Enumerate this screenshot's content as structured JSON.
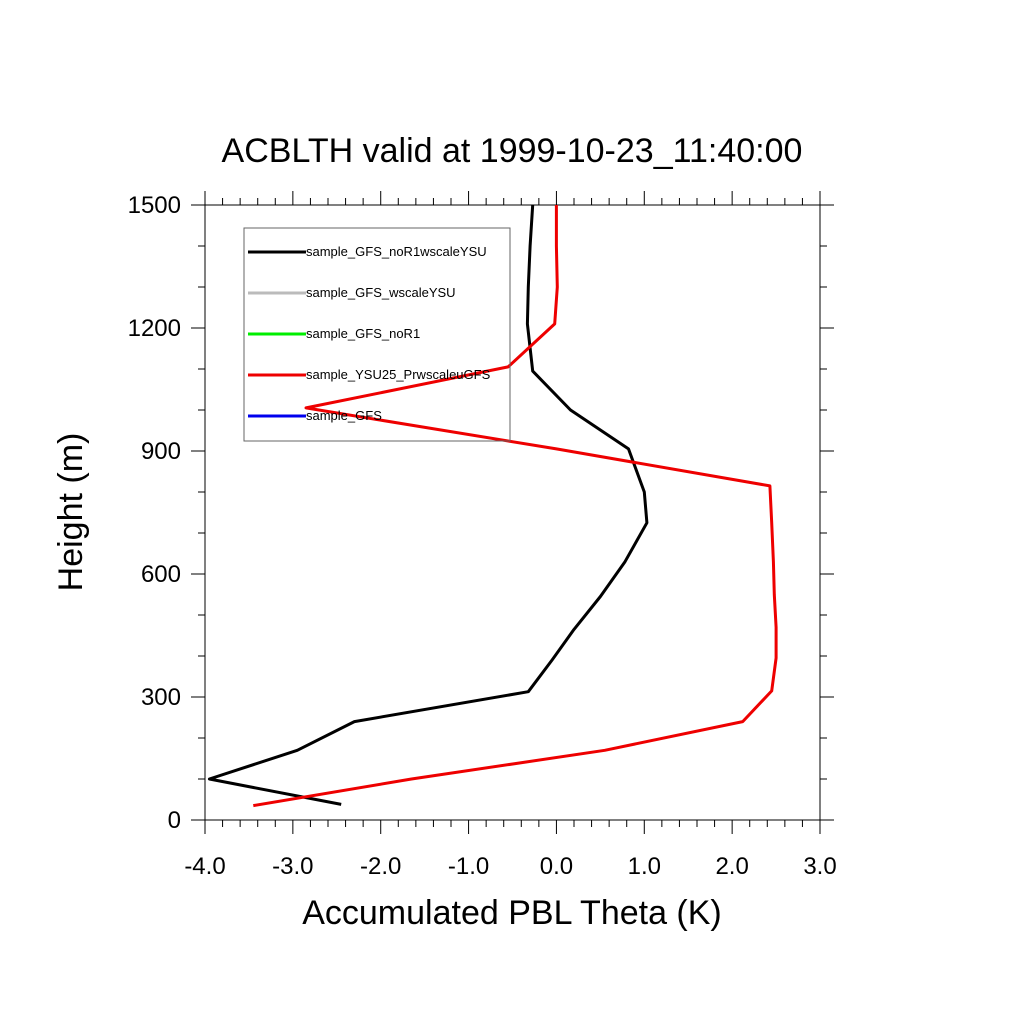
{
  "chart_data": {
    "type": "line",
    "title": "ACBLTH valid at 1999-10-23_11:40:00",
    "xlabel": "Accumulated PBL Theta (K)",
    "ylabel": "Height (m)",
    "xlim": [
      -4.0,
      3.0
    ],
    "ylim": [
      0,
      1500
    ],
    "xticks": [
      -4.0,
      -3.0,
      -2.0,
      -1.0,
      0.0,
      1.0,
      2.0,
      3.0
    ],
    "xtick_labels": [
      "-4.0",
      "-3.0",
      "-2.0",
      "-1.0",
      "0.0",
      "1.0",
      "2.0",
      "3.0"
    ],
    "yticks": [
      0,
      300,
      600,
      900,
      1200,
      1500
    ],
    "ytick_labels": [
      "0",
      "300",
      "600",
      "900",
      "1200",
      "1500"
    ],
    "grid": false,
    "legend_placement": "top-left",
    "series": [
      {
        "name": "sample_GFS_noR1wscaleYSU",
        "color": "#000000",
        "points": [
          [
            -2.45,
            38
          ],
          [
            -3.95,
            100
          ],
          [
            -2.95,
            170
          ],
          [
            -2.3,
            240
          ],
          [
            -0.32,
            313
          ],
          [
            -0.05,
            390
          ],
          [
            0.2,
            465
          ],
          [
            0.5,
            545
          ],
          [
            0.78,
            630
          ],
          [
            1.03,
            725
          ],
          [
            1.0,
            800
          ],
          [
            0.82,
            905
          ],
          [
            0.16,
            1000
          ],
          [
            -0.27,
            1095
          ],
          [
            -0.33,
            1210
          ],
          [
            -0.32,
            1300
          ],
          [
            -0.3,
            1400
          ],
          [
            -0.27,
            1500
          ]
        ]
      },
      {
        "name": "sample_GFS_wscaleYSU",
        "color": "#bbbbbb",
        "points": []
      },
      {
        "name": "sample_GFS_noR1",
        "color": "#00ee00",
        "points": []
      },
      {
        "name": "sample_YSU25_PrwscaleuGFS",
        "color": "#ee0000",
        "points": [
          [
            -3.45,
            35
          ],
          [
            -1.65,
            100
          ],
          [
            0.55,
            170
          ],
          [
            2.12,
            240
          ],
          [
            2.45,
            315
          ],
          [
            2.5,
            395
          ],
          [
            2.5,
            470
          ],
          [
            2.48,
            550
          ],
          [
            2.47,
            630
          ],
          [
            2.45,
            725
          ],
          [
            2.43,
            815
          ],
          [
            0.0,
            905
          ],
          [
            -2.85,
            1005
          ],
          [
            -0.55,
            1105
          ],
          [
            -0.02,
            1210
          ],
          [
            0.01,
            1300
          ],
          [
            0.0,
            1400
          ],
          [
            0.0,
            1500
          ]
        ]
      },
      {
        "name": "sample_GFS",
        "color": "#0000ee",
        "points": []
      }
    ]
  }
}
